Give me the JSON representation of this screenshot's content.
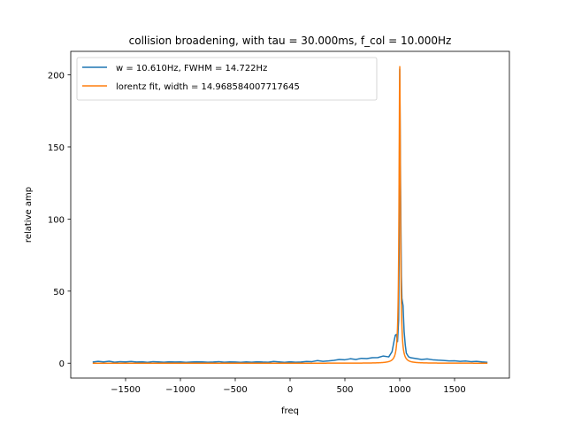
{
  "chart_data": {
    "type": "line",
    "title": "collision broadening, with tau = 30.000ms, f_col = 10.000Hz",
    "xlabel": "freq",
    "ylabel": "relative amp",
    "xlim": [
      -2000,
      2000
    ],
    "ylim": [
      -10.3,
      216.3
    ],
    "xticks": [
      -1500,
      -1000,
      -500,
      0,
      500,
      1000,
      1500
    ],
    "yticks": [
      0,
      50,
      100,
      150,
      200
    ],
    "grid": false,
    "legend_position": "top-left",
    "series": [
      {
        "name": "w = 10.610Hz, FWHM = 14.722Hz",
        "color": "#1f77b4",
        "x": [
          -1800,
          -1750,
          -1700,
          -1650,
          -1600,
          -1550,
          -1500,
          -1450,
          -1400,
          -1350,
          -1300,
          -1250,
          -1200,
          -1150,
          -1100,
          -1050,
          -1000,
          -950,
          -900,
          -850,
          -800,
          -750,
          -700,
          -650,
          -600,
          -550,
          -500,
          -450,
          -400,
          -350,
          -300,
          -250,
          -200,
          -150,
          -100,
          -50,
          0,
          50,
          100,
          150,
          200,
          250,
          300,
          350,
          400,
          450,
          500,
          550,
          600,
          650,
          700,
          750,
          800,
          850,
          900,
          930,
          950,
          960,
          970,
          980,
          990,
          995,
          1000,
          1005,
          1010,
          1015,
          1020,
          1030,
          1040,
          1050,
          1060,
          1080,
          1100,
          1150,
          1200,
          1250,
          1300,
          1350,
          1400,
          1450,
          1500,
          1550,
          1600,
          1650,
          1700,
          1750,
          1800
        ],
        "y": [
          0.8,
          1.3,
          0.9,
          1.4,
          0.7,
          1.1,
          0.9,
          1.2,
          0.8,
          1.0,
          0.6,
          1.1,
          0.9,
          0.7,
          1.0,
          0.8,
          0.9,
          0.6,
          0.8,
          1.0,
          0.9,
          0.7,
          0.8,
          1.1,
          0.7,
          0.9,
          0.8,
          0.6,
          0.9,
          0.7,
          1.0,
          0.8,
          0.7,
          1.2,
          0.9,
          0.6,
          1.0,
          0.7,
          0.8,
          1.2,
          1.1,
          1.8,
          1.3,
          1.6,
          2.0,
          2.6,
          2.4,
          3.1,
          2.6,
          3.4,
          3.2,
          3.8,
          3.9,
          5.0,
          4.4,
          8.0,
          16.0,
          19.5,
          20.0,
          15.0,
          30.0,
          80.0,
          204.0,
          150.0,
          100.0,
          60.0,
          45.0,
          40.0,
          22.0,
          13.0,
          7.0,
          4.5,
          3.8,
          3.2,
          2.6,
          3.0,
          2.4,
          2.1,
          1.9,
          1.6,
          1.7,
          1.3,
          1.5,
          1.1,
          1.3,
          0.9,
          0.6
        ]
      },
      {
        "name": "lorentz fit, width = 14.968584007717645",
        "color": "#ff7f0e",
        "lorentz": {
          "x0": 1000,
          "gamma": 7.484,
          "amp": 206,
          "xmin": -1800,
          "xmax": 1800,
          "samples": 1400
        }
      }
    ]
  }
}
